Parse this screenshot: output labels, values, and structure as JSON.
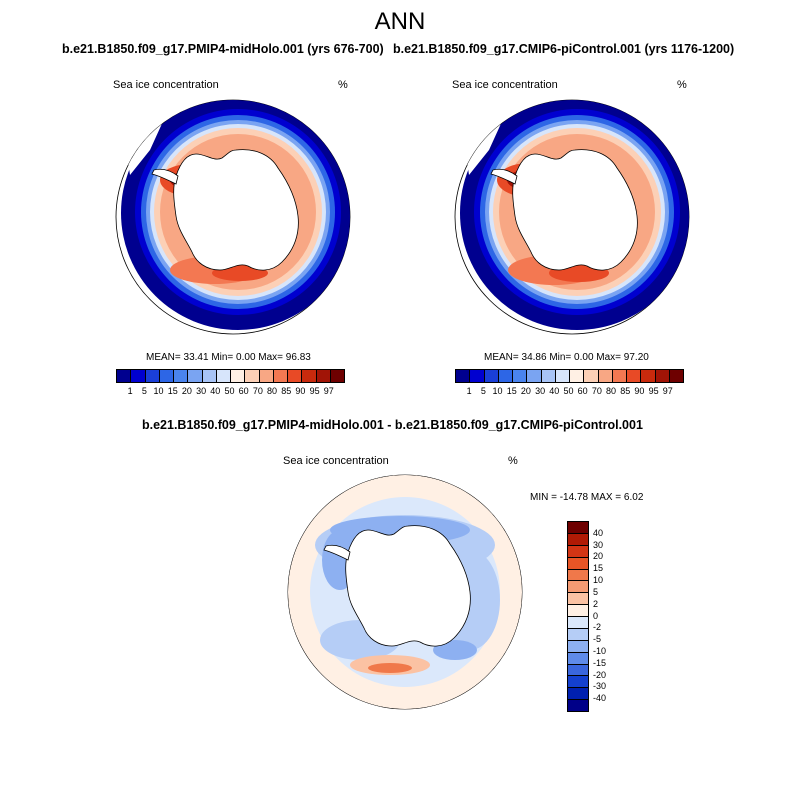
{
  "title": "ANN",
  "panel_left": {
    "title": "b.e21.B1850.f09_g17.PMIP4-midHolo.001 (yrs 676-700)",
    "varname": "Sea ice concentration",
    "unit": "%",
    "stats": "MEAN=  33.41  Min=   0.00  Max=  96.83"
  },
  "panel_right": {
    "title": "b.e21.B1850.f09_g17.CMIP6-piControl.001 (yrs 1176-1200)",
    "varname": "Sea ice concentration",
    "unit": "%",
    "stats": "MEAN=  34.86  Min=   0.00  Max=  97.20"
  },
  "panel_diff": {
    "title": "b.e21.B1850.f09_g17.PMIP4-midHolo.001 - b.e21.B1850.f09_g17.CMIP6-piControl.001",
    "varname": "Sea ice concentration",
    "unit": "%",
    "stats": "MIN = -14.78 MAX =   6.02"
  },
  "colorbar_abs": {
    "labels": [
      "1",
      "5",
      "10",
      "15",
      "20",
      "30",
      "40",
      "50",
      "60",
      "70",
      "80",
      "85",
      "90",
      "95",
      "97"
    ],
    "colors": [
      "#00008f",
      "#0000d0",
      "#1a3fd8",
      "#2d66e6",
      "#4a84ee",
      "#7aa4f2",
      "#a8c4f6",
      "#d7e5fb",
      "#fff0e4",
      "#fcd0b6",
      "#f8a784",
      "#f37852",
      "#e84a26",
      "#c82a0d",
      "#a11406",
      "#6e0000"
    ]
  },
  "colorbar_diff": {
    "labels": [
      "40",
      "30",
      "20",
      "15",
      "10",
      "5",
      "2",
      "0",
      "-2",
      "-5",
      "-10",
      "-15",
      "-20",
      "-30",
      "-40"
    ],
    "colors": [
      "#6e0000",
      "#b01a05",
      "#d23515",
      "#e85526",
      "#f0784a",
      "#f59b73",
      "#fbc2a3",
      "#fff0e4",
      "#dbe8fb",
      "#b5cdf6",
      "#8db0f1",
      "#5f8be9",
      "#3a66dd",
      "#1440cf",
      "#0020b0",
      "#000088"
    ]
  }
}
